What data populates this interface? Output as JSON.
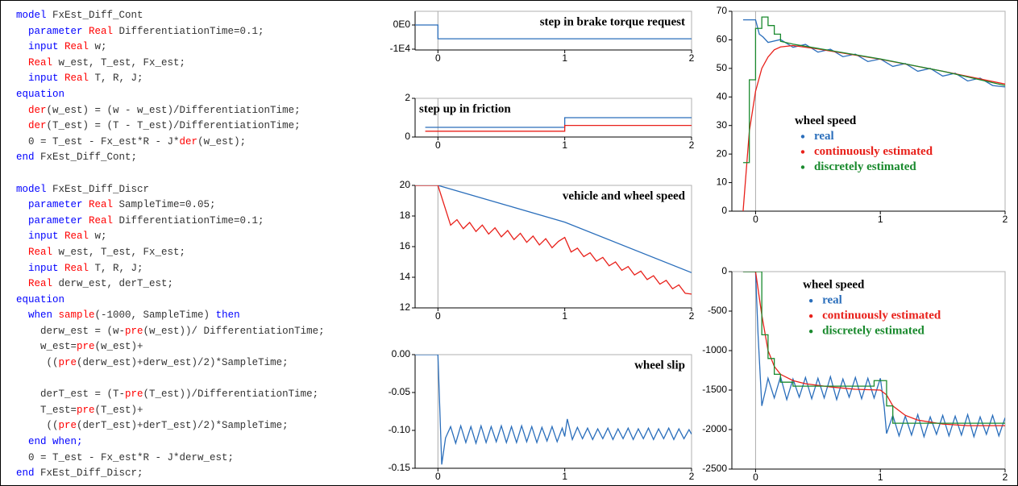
{
  "code": {
    "colors": {
      "kw": "#0000ff",
      "fn": "#ff0000",
      "id": "#333333"
    },
    "blocks": [
      [
        [
          [
            "model",
            "kw"
          ],
          [
            " FxEst_Diff_Cont",
            "id"
          ]
        ],
        [
          [
            "  parameter",
            "kw"
          ],
          [
            " Real",
            "fn"
          ],
          [
            " DifferentiationTime=0.1;",
            "id"
          ]
        ],
        [
          [
            "  input",
            "kw"
          ],
          [
            " Real",
            "fn"
          ],
          [
            " w;",
            "id"
          ]
        ],
        [
          [
            "  Real",
            "fn"
          ],
          [
            " w_est, T_est, Fx_est;",
            "id"
          ]
        ],
        [
          [
            "  input",
            "kw"
          ],
          [
            " Real",
            "fn"
          ],
          [
            " T, R, J;",
            "id"
          ]
        ],
        [
          [
            "equation",
            "kw"
          ]
        ],
        [
          [
            "  der",
            "fn"
          ],
          [
            "(w_est) = (w - w_est)/DifferentiationTime;",
            "id"
          ]
        ],
        [
          [
            "  der",
            "fn"
          ],
          [
            "(T_est) = (T - T_est)/DifferentiationTime;",
            "id"
          ]
        ],
        [
          [
            "  0 = T_est - Fx_est*R - J*",
            "id"
          ],
          [
            "der",
            "fn"
          ],
          [
            "(w_est);",
            "id"
          ]
        ],
        [
          [
            "end",
            "kw"
          ],
          [
            " FxEst_Diff_Cont;",
            "id"
          ]
        ]
      ],
      [
        [
          [
            "model",
            "kw"
          ],
          [
            " FxEst_Diff_Discr",
            "id"
          ]
        ],
        [
          [
            "  parameter",
            "kw"
          ],
          [
            " Real",
            "fn"
          ],
          [
            " SampleTime=0.05;",
            "id"
          ]
        ],
        [
          [
            "  parameter",
            "kw"
          ],
          [
            " Real",
            "fn"
          ],
          [
            " DifferentiationTime=0.1;",
            "id"
          ]
        ],
        [
          [
            "  input",
            "kw"
          ],
          [
            " Real",
            "fn"
          ],
          [
            " w;",
            "id"
          ]
        ],
        [
          [
            "  Real",
            "fn"
          ],
          [
            " w_est, T_est, Fx_est;",
            "id"
          ]
        ],
        [
          [
            "  input",
            "kw"
          ],
          [
            " Real",
            "fn"
          ],
          [
            " T, R, J;",
            "id"
          ]
        ],
        [
          [
            "  Real",
            "fn"
          ],
          [
            " derw_est, derT_est;",
            "id"
          ]
        ],
        [
          [
            "equation",
            "kw"
          ]
        ],
        [
          [
            "  when",
            "kw"
          ],
          [
            " sample",
            "fn"
          ],
          [
            "(-1000, SampleTime) ",
            "id"
          ],
          [
            "then",
            "kw"
          ]
        ],
        [
          [
            "    derw_est = (w-",
            "id"
          ],
          [
            "pre",
            "fn"
          ],
          [
            "(w_est))/ DifferentiationTime;",
            "id"
          ]
        ],
        [
          [
            "    w_est=",
            "id"
          ],
          [
            "pre",
            "fn"
          ],
          [
            "(w_est)+",
            "id"
          ]
        ],
        [
          [
            "     ((",
            "id"
          ],
          [
            "pre",
            "fn"
          ],
          [
            "(derw_est)+derw_est)/2)*SampleTime;",
            "id"
          ]
        ]
      ],
      [
        [
          [
            "    derT_est = (T-",
            "id"
          ],
          [
            "pre",
            "fn"
          ],
          [
            "(T_est))/DifferentiationTime;",
            "id"
          ]
        ],
        [
          [
            "    T_est=",
            "id"
          ],
          [
            "pre",
            "fn"
          ],
          [
            "(T_est)+",
            "id"
          ]
        ],
        [
          [
            "     ((",
            "id"
          ],
          [
            "pre",
            "fn"
          ],
          [
            "(derT_est)+derT_est)/2)*SampleTime;",
            "id"
          ]
        ],
        [
          [
            "  end when;",
            "kw"
          ]
        ],
        [
          [
            "  0 = T_est - Fx_est*R - J*derw_est;",
            "id"
          ]
        ],
        [
          [
            "end",
            "kw"
          ],
          [
            " FxEst_Diff_Discr;",
            "id"
          ]
        ]
      ]
    ]
  },
  "chart_data": [
    {
      "type": "line",
      "title": "step in brake torque request",
      "title_position": "upper right",
      "xlim": [
        -0.18,
        2
      ],
      "xticks": [
        0,
        1,
        2
      ],
      "ylim": [
        -10333,
        5667
      ],
      "yticks": [
        {
          "value": 0,
          "label": "0E0"
        },
        {
          "value": -10000,
          "label": "-1E4"
        }
      ],
      "series": [
        {
          "color": "#2a6ebb",
          "x": [
            -0.18,
            0,
            0,
            2
          ],
          "values": [
            0,
            0,
            -5700,
            -5700
          ]
        }
      ]
    },
    {
      "type": "line",
      "title": "step up in friction",
      "title_position": "upper left",
      "xlim": [
        -0.18,
        2
      ],
      "xticks": [
        0,
        1,
        2
      ],
      "ylim": [
        0,
        2
      ],
      "yticks": [
        0,
        2
      ],
      "series": [
        {
          "color": "#2a6ebb",
          "x": [
            -0.1,
            1,
            1,
            2
          ],
          "values": [
            0.5,
            0.5,
            1.0,
            1.0
          ]
        },
        {
          "color": "#e8201a",
          "x": [
            -0.1,
            1,
            1,
            2
          ],
          "values": [
            0.3,
            0.3,
            0.6,
            0.6
          ]
        }
      ]
    },
    {
      "type": "line",
      "title": "vehicle and wheel speed",
      "title_position": "upper right",
      "xlim": [
        -0.18,
        2
      ],
      "xticks": [
        0,
        1,
        2
      ],
      "ylim": [
        12,
        20
      ],
      "yticks": [
        12,
        14,
        16,
        18,
        20
      ],
      "series": [
        {
          "color": "#2a6ebb",
          "x": [
            -0.18,
            0,
            1,
            2
          ],
          "values": [
            20,
            20,
            17.6,
            14.3
          ]
        },
        {
          "color": "#e8201a",
          "x": [
            -0.18,
            0,
            0.1,
            0.15,
            0.2,
            0.25,
            0.3,
            0.35,
            0.4,
            0.45,
            0.5,
            0.55,
            0.6,
            0.65,
            0.7,
            0.75,
            0.8,
            0.85,
            0.9,
            0.95,
            1.0,
            1.05,
            1.1,
            1.15,
            1.2,
            1.25,
            1.3,
            1.35,
            1.4,
            1.45,
            1.5,
            1.55,
            1.6,
            1.65,
            1.7,
            1.75,
            1.8,
            1.85,
            1.9,
            1.95,
            2.0
          ],
          "values": [
            20,
            20,
            17.4,
            17.76,
            17.17,
            17.58,
            16.99,
            17.41,
            16.82,
            17.23,
            16.64,
            17.05,
            16.46,
            16.87,
            16.28,
            16.69,
            16.11,
            16.52,
            15.93,
            16.34,
            16.6,
            15.65,
            15.9,
            15.35,
            15.6,
            15.05,
            15.3,
            14.75,
            15.0,
            14.45,
            14.7,
            14.15,
            14.4,
            13.85,
            14.1,
            13.55,
            13.8,
            13.25,
            13.5,
            12.95,
            12.9
          ]
        }
      ]
    },
    {
      "type": "line",
      "title": "wheel slip",
      "title_position": "upper right",
      "xlim": [
        -0.18,
        2
      ],
      "xticks": [
        0,
        1,
        2
      ],
      "ylim": [
        -0.15,
        0
      ],
      "yticks": [
        {
          "value": 0,
          "label": "0.00"
        },
        -0.05,
        {
          "value": -0.1,
          "label": "-0.10"
        },
        -0.15
      ],
      "series": [
        {
          "color": "#2a6ebb",
          "x": [
            -0.18,
            0,
            0.03,
            0.06,
            0.1,
            0.14,
            0.18,
            0.22,
            0.26,
            0.3,
            0.34,
            0.38,
            0.42,
            0.46,
            0.5,
            0.54,
            0.58,
            0.62,
            0.66,
            0.7,
            0.74,
            0.78,
            0.82,
            0.86,
            0.9,
            0.94,
            0.98,
            1.0,
            1.02,
            1.06,
            1.1,
            1.14,
            1.18,
            1.22,
            1.26,
            1.3,
            1.34,
            1.38,
            1.42,
            1.46,
            1.5,
            1.54,
            1.58,
            1.62,
            1.66,
            1.7,
            1.74,
            1.78,
            1.82,
            1.86,
            1.9,
            1.94,
            1.98,
            2.0
          ],
          "values": [
            0,
            0,
            -0.145,
            -0.11,
            -0.095,
            -0.117,
            -0.094,
            -0.116,
            -0.095,
            -0.117,
            -0.094,
            -0.116,
            -0.095,
            -0.115,
            -0.094,
            -0.116,
            -0.095,
            -0.116,
            -0.094,
            -0.115,
            -0.095,
            -0.116,
            -0.096,
            -0.114,
            -0.095,
            -0.115,
            -0.097,
            -0.108,
            -0.085,
            -0.112,
            -0.096,
            -0.111,
            -0.097,
            -0.112,
            -0.098,
            -0.111,
            -0.097,
            -0.112,
            -0.098,
            -0.111,
            -0.097,
            -0.112,
            -0.098,
            -0.111,
            -0.097,
            -0.112,
            -0.098,
            -0.111,
            -0.097,
            -0.112,
            -0.098,
            -0.111,
            -0.099,
            -0.105
          ]
        }
      ]
    },
    {
      "type": "line",
      "legend_title": "wheel speed",
      "legend": "center left",
      "xlim": [
        -0.19,
        2
      ],
      "xticks": [
        0,
        1,
        2
      ],
      "ylim": [
        0,
        70
      ],
      "yticks": [
        0,
        10,
        20,
        30,
        40,
        50,
        60,
        70
      ],
      "series": [
        {
          "name": "real",
          "color": "#2a6ebb",
          "x": [
            -0.1,
            0,
            0.03,
            0.06,
            0.1,
            0.2,
            0.3,
            0.4,
            0.5,
            0.6,
            0.7,
            0.8,
            0.9,
            1.0,
            1.1,
            1.2,
            1.3,
            1.4,
            1.5,
            1.6,
            1.7,
            1.8,
            1.9,
            2.0
          ],
          "values": [
            67,
            67,
            62,
            61,
            59.1,
            60.1,
            57.4,
            58.4,
            55.7,
            56.7,
            54.1,
            55.0,
            52.4,
            53.3,
            50.7,
            51.7,
            49.0,
            50.0,
            47.3,
            48.3,
            45.6,
            46.6,
            44.0,
            43.5
          ]
        },
        {
          "name": "continuously estimated",
          "color": "#e8201a",
          "x": [
            -0.1,
            -0.05,
            0,
            0.05,
            0.1,
            0.15,
            0.2,
            0.3,
            0.5,
            1.0,
            1.5,
            2.0
          ],
          "values": [
            0,
            28,
            42,
            50,
            54,
            56.5,
            57.5,
            58,
            56.8,
            53.2,
            49,
            44.5
          ]
        },
        {
          "name": "discretely estimated",
          "color": "#1a8a2e",
          "x": [
            -0.1,
            -0.05,
            -0.05,
            0,
            0,
            0.05,
            0.05,
            0.1,
            0.1,
            0.15,
            0.15,
            0.2,
            0.2,
            0.3,
            0.5,
            1,
            1.5,
            2
          ],
          "values": [
            17,
            17,
            46,
            46,
            64,
            64,
            68,
            68,
            65,
            65,
            62,
            62,
            59.5,
            58.5,
            57,
            53.3,
            49,
            44
          ]
        }
      ]
    },
    {
      "type": "line",
      "legend_title": "wheel speed",
      "legend": "upper left",
      "xlim": [
        -0.19,
        2
      ],
      "xticks": [
        0,
        1,
        2
      ],
      "ylim": [
        -2500,
        0
      ],
      "yticks": [
        0,
        -500,
        -1000,
        -1500,
        -2000,
        -2500
      ],
      "series": [
        {
          "name": "real",
          "color": "#2a6ebb",
          "x": [
            -0.1,
            0,
            0.02,
            0.05,
            0.08,
            0.1,
            0.15,
            0.2,
            0.25,
            0.3,
            0.35,
            0.4,
            0.45,
            0.5,
            0.55,
            0.6,
            0.65,
            0.7,
            0.75,
            0.8,
            0.85,
            0.9,
            0.95,
            1.0,
            1.03,
            1.05,
            1.1,
            1.15,
            1.2,
            1.25,
            1.3,
            1.35,
            1.4,
            1.45,
            1.5,
            1.55,
            1.6,
            1.65,
            1.7,
            1.75,
            1.8,
            1.85,
            1.9,
            1.95,
            2.0
          ],
          "values": [
            0,
            0,
            -800,
            -1700,
            -1500,
            -1350,
            -1600,
            -1330,
            -1620,
            -1360,
            -1590,
            -1340,
            -1610,
            -1350,
            -1600,
            -1330,
            -1620,
            -1360,
            -1590,
            -1340,
            -1610,
            -1350,
            -1600,
            -1350,
            -1700,
            -2050,
            -1820,
            -2080,
            -1830,
            -2070,
            -1810,
            -2090,
            -1840,
            -2060,
            -1820,
            -2080,
            -1830,
            -2070,
            -1810,
            -2090,
            -1840,
            -2060,
            -1820,
            -2080,
            -1850
          ]
        },
        {
          "name": "continuously estimated",
          "color": "#e8201a",
          "x": [
            -0.1,
            0,
            0.05,
            0.1,
            0.15,
            0.2,
            0.3,
            0.4,
            0.6,
            0.8,
            1.0,
            1.05,
            1.1,
            1.2,
            1.3,
            1.5,
            1.7,
            2.0
          ],
          "values": [
            0,
            0,
            -550,
            -1000,
            -1200,
            -1300,
            -1380,
            -1420,
            -1460,
            -1490,
            -1500,
            -1560,
            -1700,
            -1820,
            -1880,
            -1930,
            -1950,
            -1950
          ]
        },
        {
          "name": "discretely estimated",
          "color": "#1a8a2e",
          "x": [
            -0.1,
            0.05,
            0.05,
            0.1,
            0.1,
            0.15,
            0.15,
            0.2,
            0.2,
            0.3,
            0.3,
            0.95,
            0.95,
            1.05,
            1.05,
            1.1,
            1.1,
            2.0
          ],
          "values": [
            0,
            0,
            -800,
            -800,
            -1100,
            -1100,
            -1300,
            -1300,
            -1400,
            -1400,
            -1450,
            -1450,
            -1380,
            -1380,
            -1700,
            -1700,
            -1920,
            -1920
          ]
        }
      ]
    }
  ]
}
